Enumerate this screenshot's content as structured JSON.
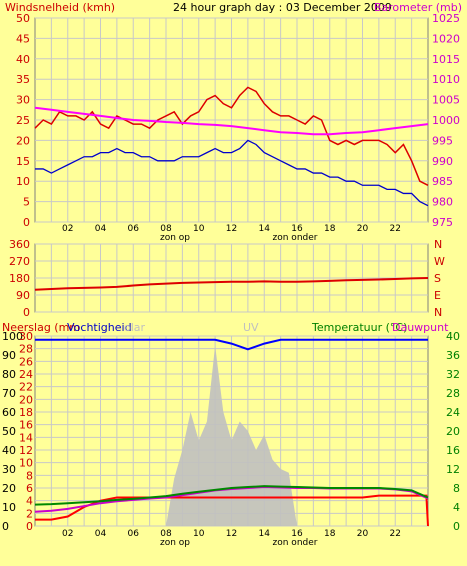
{
  "colors": {
    "background": "#ffff99",
    "plot_bg": "#ffff99",
    "grid": "#c8c8c8",
    "wind_gust": "#dd0000",
    "wind_avg": "#0000cc",
    "barometer": "#ff00ff",
    "wind_dir": "#dd0000",
    "humidity": "#0000ff",
    "solar": "#c0c0c0",
    "rain": "#ff0000",
    "temperature": "#008800",
    "dewpoint": "#cc00cc",
    "label_red": "#cc0000",
    "label_magenta": "#cc00cc",
    "label_green": "#008000",
    "label_blue": "#0000cc",
    "label_gray": "#c0c0c0",
    "label_black": "#000000"
  },
  "header": {
    "left_label": "Windsnelheid (kmh)",
    "center_label": "24 hour graph day : 03 December 2009",
    "right_label": "Barometer (mb)"
  },
  "middle_right_letters": [
    "N",
    "W",
    "S",
    "E",
    "N"
  ],
  "bottom_header": {
    "rain": "Neerslag (mm",
    "humidity": "Vochtigheid",
    "solar": "olar",
    "uv": "UV",
    "temperature": "Temperatuur (°C)",
    "dewpoint": "Dauwpunt"
  },
  "x_ticks": [
    "02",
    "04",
    "06",
    "08",
    "10",
    "12",
    "14",
    "16",
    "18",
    "20",
    "22"
  ],
  "sunrise_label": "zon op",
  "sunset_label": "zon onder",
  "chart_data": [
    {
      "type": "line",
      "title": "24 hour graph day : 03 December 2009",
      "ylabel": "Windsnelheid (kmh)",
      "y2label": "Barometer (mb)",
      "x_range": [
        0,
        24
      ],
      "ylim": [
        0,
        50
      ],
      "y2lim": [
        975,
        1025
      ],
      "y_ticks": [
        "0",
        "5",
        "10",
        "15",
        "20",
        "25",
        "30",
        "35",
        "40",
        "45",
        "50"
      ],
      "y2_ticks": [
        "975",
        "980",
        "985",
        "990",
        "995",
        "1000",
        "1005",
        "1010",
        "1015",
        "1020",
        "1025"
      ],
      "grid": true,
      "series": [
        {
          "key": "wind_gust",
          "x": [
            0,
            0.5,
            1,
            1.5,
            2,
            2.5,
            3,
            3.5,
            4,
            4.5,
            5,
            5.5,
            6,
            6.5,
            7,
            7.5,
            8,
            8.5,
            9,
            9.5,
            10,
            10.5,
            11,
            11.5,
            12,
            12.5,
            13,
            13.5,
            14,
            14.5,
            15,
            15.5,
            16,
            16.5,
            17,
            17.5,
            18,
            18.5,
            19,
            19.5,
            20,
            20.5,
            21,
            21.5,
            22,
            22.5,
            23,
            23.5,
            24
          ],
          "y": [
            23,
            25,
            24,
            27,
            26,
            26,
            25,
            27,
            24,
            23,
            26,
            25,
            24,
            24,
            23,
            25,
            26,
            27,
            24,
            26,
            27,
            30,
            31,
            29,
            28,
            31,
            33,
            32,
            29,
            27,
            26,
            26,
            25,
            24,
            26,
            25,
            20,
            19,
            20,
            19,
            20,
            20,
            20,
            19,
            17,
            19,
            15,
            10,
            9
          ]
        },
        {
          "key": "wind_avg",
          "x": [
            0,
            0.5,
            1,
            1.5,
            2,
            2.5,
            3,
            3.5,
            4,
            4.5,
            5,
            5.5,
            6,
            6.5,
            7,
            7.5,
            8,
            8.5,
            9,
            9.5,
            10,
            10.5,
            11,
            11.5,
            12,
            12.5,
            13,
            13.5,
            14,
            14.5,
            15,
            15.5,
            16,
            16.5,
            17,
            17.5,
            18,
            18.5,
            19,
            19.5,
            20,
            20.5,
            21,
            21.5,
            22,
            22.5,
            23,
            23.5,
            24
          ],
          "y": [
            13,
            13,
            12,
            13,
            14,
            15,
            16,
            16,
            17,
            17,
            18,
            17,
            17,
            16,
            16,
            15,
            15,
            15,
            16,
            16,
            16,
            17,
            18,
            17,
            17,
            18,
            20,
            19,
            17,
            16,
            15,
            14,
            13,
            13,
            12,
            12,
            11,
            11,
            10,
            10,
            9,
            9,
            9,
            8,
            8,
            7,
            7,
            5,
            4
          ]
        },
        {
          "key": "barometer",
          "axis": "right",
          "x": [
            0,
            1,
            2,
            3,
            4,
            5,
            6,
            7,
            8,
            9,
            10,
            11,
            12,
            13,
            14,
            15,
            16,
            17,
            18,
            19,
            20,
            21,
            22,
            23,
            24
          ],
          "y": [
            1003,
            1002.5,
            1002,
            1001.5,
            1001,
            1000.5,
            1000,
            999.8,
            999.5,
            999.3,
            999,
            998.8,
            998.5,
            998,
            997.5,
            997,
            996.8,
            996.5,
            996.5,
            996.8,
            997,
            997.5,
            998,
            998.5,
            999
          ]
        }
      ]
    },
    {
      "type": "line",
      "ylabel": "",
      "x_range": [
        0,
        24
      ],
      "ylim": [
        0,
        360
      ],
      "y_ticks": [
        "0",
        "90",
        "180",
        "270",
        "360"
      ],
      "grid": true,
      "series": [
        {
          "key": "wind_dir",
          "x": [
            0,
            1,
            2,
            3,
            4,
            5,
            6,
            7,
            8,
            9,
            10,
            11,
            12,
            13,
            14,
            15,
            16,
            17,
            18,
            19,
            20,
            21,
            22,
            23,
            24
          ],
          "y": [
            118,
            122,
            126,
            128,
            130,
            133,
            140,
            146,
            150,
            154,
            156,
            158,
            160,
            160,
            162,
            160,
            160,
            162,
            165,
            168,
            170,
            172,
            175,
            178,
            180
          ]
        }
      ]
    },
    {
      "type": "area",
      "ylabel": "Neerslag (mm",
      "y2label": "Temperatuur (°C)",
      "x_range": [
        0,
        24
      ],
      "left_outer_ticks": [
        "0",
        "10",
        "20",
        "30",
        "40",
        "50",
        "60",
        "70",
        "80",
        "90",
        "100"
      ],
      "left_inner_ticks": [
        "0",
        "2",
        "4",
        "6",
        "8",
        "10",
        "12",
        "14",
        "16",
        "18",
        "20",
        "22",
        "24",
        "26",
        "28",
        "30"
      ],
      "right_ticks": [
        "0",
        "4",
        "8",
        "12",
        "16",
        "20",
        "24",
        "28",
        "32",
        "36",
        "40"
      ],
      "y_rain_lim": [
        0,
        30
      ],
      "y_pct_lim": [
        0,
        100
      ],
      "y_temp_lim": [
        0,
        40
      ],
      "grid": true,
      "series": [
        {
          "key": "humidity",
          "unit": "%",
          "x": [
            0,
            1,
            2,
            3,
            4,
            5,
            6,
            7,
            8,
            9,
            10,
            11,
            12,
            13,
            14,
            15,
            16,
            17,
            18,
            19,
            20,
            21,
            22,
            23,
            24
          ],
          "y": [
            98,
            98,
            98,
            98,
            98,
            98,
            98,
            98,
            98,
            98,
            98,
            98,
            96,
            93,
            96,
            98,
            98,
            98,
            98,
            98,
            98,
            98,
            98,
            98,
            98
          ]
        },
        {
          "key": "solar",
          "unit": "W/m2",
          "x": [
            0,
            8,
            8.5,
            9,
            9.5,
            10,
            10.5,
            11,
            11.5,
            12,
            12.5,
            13,
            13.5,
            14,
            14.5,
            15,
            15.5,
            16,
            24
          ],
          "y": [
            0,
            0,
            25,
            40,
            60,
            45,
            55,
            95,
            60,
            45,
            55,
            50,
            40,
            48,
            35,
            30,
            28,
            0,
            0
          ]
        },
        {
          "key": "rain",
          "unit": "mm",
          "x": [
            0,
            1,
            2,
            3,
            4,
            5,
            6,
            7,
            8,
            9,
            10,
            11,
            12,
            13,
            14,
            15,
            16,
            17,
            18,
            19,
            20,
            21,
            22,
            23,
            23.9,
            24
          ],
          "y": [
            1,
            1,
            1.5,
            3,
            4,
            4.5,
            4.5,
            4.5,
            4.5,
            4.5,
            4.5,
            4.5,
            4.5,
            4.5,
            4.5,
            4.5,
            4.5,
            4.5,
            4.5,
            4.5,
            4.5,
            4.8,
            4.8,
            4.8,
            4.8,
            0
          ]
        },
        {
          "key": "temperature",
          "unit": "°C",
          "x": [
            0,
            1,
            2,
            3,
            4,
            5,
            6,
            7,
            8,
            9,
            10,
            11,
            12,
            13,
            14,
            15,
            16,
            17,
            18,
            19,
            20,
            21,
            22,
            23,
            24
          ],
          "y": [
            4.5,
            4.6,
            4.8,
            5,
            5.2,
            5.5,
            5.7,
            6,
            6.3,
            6.8,
            7.2,
            7.6,
            8,
            8.2,
            8.4,
            8.3,
            8.2,
            8.1,
            8,
            8,
            8,
            8,
            7.8,
            7.5,
            6
          ]
        },
        {
          "key": "dewpoint",
          "unit": "°C",
          "x": [
            0,
            1,
            2,
            3,
            4,
            5,
            6,
            7,
            8,
            9,
            10,
            11,
            12,
            13,
            14,
            15,
            16,
            17,
            18,
            19,
            20,
            21,
            22,
            23,
            24
          ],
          "y": [
            3,
            3.2,
            3.6,
            4.2,
            4.8,
            5.2,
            5.5,
            5.8,
            6,
            6.5,
            7,
            7.5,
            7.8,
            8,
            8.2,
            8.1,
            8,
            8,
            7.9,
            7.9,
            7.9,
            7.9,
            7.7,
            7.3,
            5.8
          ]
        }
      ]
    }
  ]
}
